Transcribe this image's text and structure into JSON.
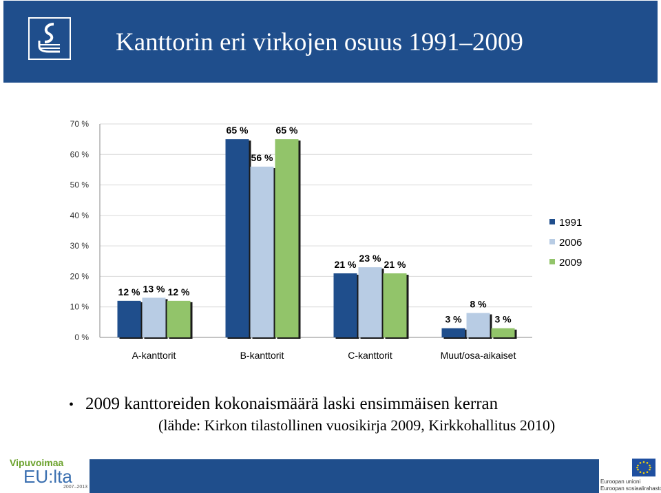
{
  "slide": {
    "title": "Kanttorin eri virkojen osuus 1991–2009",
    "bullet": "2009 kanttoreiden kokonaismäärä laski ensimmäisen kerran",
    "source": "(lähde: Kirkon tilastollinen vuosikirja 2009, Kirkkohallitus 2010)"
  },
  "logos": {
    "left_title": "Vipuvoimaa",
    "left_main": "EU:lta",
    "left_years": "2007–2013",
    "right_line1": "Euroopan unioni",
    "right_line2": "Euroopan sosiaalirahasto"
  },
  "colors": {
    "header": "#1f4e8c",
    "series_1991": "#1f4e8c",
    "series_2006": "#b8cce4",
    "series_2009": "#92c46a"
  },
  "chart_data": {
    "type": "bar",
    "categories": [
      "A-kanttorit",
      "B-kanttorit",
      "C-kanttorit",
      "Muut/osa-aikaiset"
    ],
    "series": [
      {
        "name": "1991",
        "values": [
          12,
          65,
          21,
          3
        ],
        "labels": [
          "12 %",
          "65 %",
          "21 %",
          "3 %"
        ],
        "color": "#1f4e8c"
      },
      {
        "name": "2006",
        "values": [
          13,
          56,
          23,
          8
        ],
        "labels": [
          "13 %",
          "56 %",
          "23 %",
          "8 %"
        ],
        "color": "#b8cce4"
      },
      {
        "name": "2009",
        "values": [
          12,
          65,
          21,
          3
        ],
        "labels": [
          "12 %",
          "65 %",
          "21 %",
          "3 %"
        ],
        "color": "#92c46a"
      }
    ],
    "y_ticks": [
      "0 %",
      "10 %",
      "20 %",
      "30 %",
      "40 %",
      "50 %",
      "60 %",
      "70 %"
    ],
    "ylim": [
      0,
      70
    ],
    "grid": true,
    "legend": "right"
  }
}
